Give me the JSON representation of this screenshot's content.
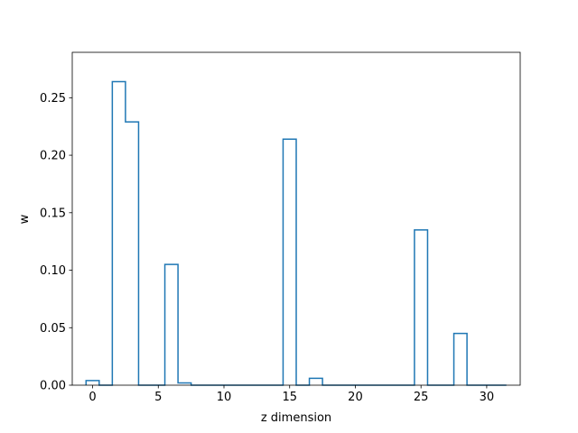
{
  "chart_data": {
    "type": "bar",
    "style": "step-histogram",
    "title": "",
    "xlabel": "z dimension",
    "ylabel": "w",
    "xlim": [
      -1.55,
      32.55
    ],
    "ylim": [
      0,
      0.2895
    ],
    "x": [
      0,
      1,
      2,
      3,
      4,
      5,
      6,
      7,
      8,
      9,
      10,
      11,
      12,
      13,
      14,
      15,
      16,
      17,
      18,
      19,
      20,
      21,
      22,
      23,
      24,
      25,
      26,
      27,
      28,
      29,
      30,
      31
    ],
    "values": [
      0.004,
      0,
      0.264,
      0.229,
      0,
      0,
      0.105,
      0.002,
      0,
      0,
      0,
      0,
      0,
      0,
      0,
      0.214,
      0,
      0.006,
      0,
      0,
      0,
      0,
      0,
      0,
      0,
      0.135,
      0,
      0,
      0.045,
      0,
      0,
      0
    ],
    "xticks": [
      0,
      5,
      10,
      15,
      20,
      25,
      30
    ],
    "xtick_labels": [
      "0",
      "5",
      "10",
      "15",
      "20",
      "25",
      "30"
    ],
    "yticks": [
      0,
      0.05,
      0.1,
      0.15,
      0.2,
      0.25
    ],
    "ytick_labels": [
      "0.00",
      "0.05",
      "0.10",
      "0.15",
      "0.20",
      "0.25"
    ],
    "grid": false,
    "line_color": "#1f77b4"
  }
}
